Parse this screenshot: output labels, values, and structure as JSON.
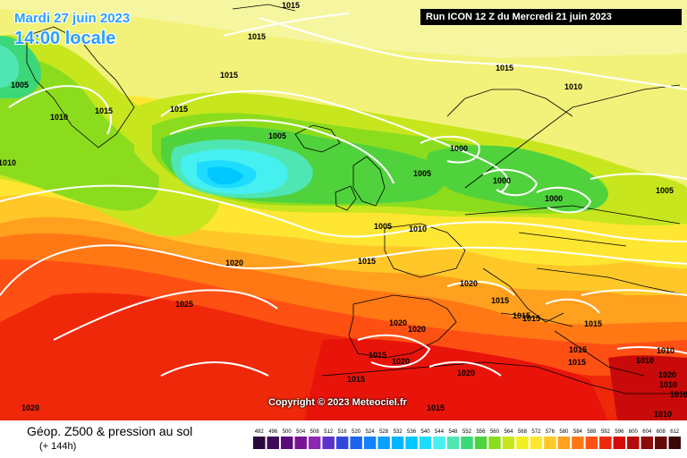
{
  "header": {
    "date": "Mardi 27 juin 2023",
    "time": "14:00 locale",
    "run": "Run ICON 12 Z du Mercredi 21 juin 2023"
  },
  "copyright": "Copyright © 2023 Meteociel.fr",
  "footer": {
    "title": "Géop. Z500 & pression au sol",
    "subtitle": "(+ 144h)"
  },
  "scale": {
    "values": [
      "492",
      "496",
      "500",
      "504",
      "508",
      "512",
      "516",
      "520",
      "524",
      "528",
      "532",
      "536",
      "540",
      "544",
      "548",
      "552",
      "556",
      "560",
      "564",
      "568",
      "572",
      "576",
      "580",
      "584",
      "588",
      "592",
      "596",
      "600",
      "604",
      "608",
      "612"
    ],
    "colors": [
      "#2b0a3d",
      "#3d0a5a",
      "#5a0a7a",
      "#7a1496",
      "#8c28b4",
      "#5a32c8",
      "#3246dc",
      "#1e64f0",
      "#1482ff",
      "#0aa0ff",
      "#00b4ff",
      "#00c8ff",
      "#1edcff",
      "#46f0f0",
      "#50e6b4",
      "#3cd778",
      "#50d23c",
      "#8cdc1e",
      "#c8e61e",
      "#f0f01e",
      "#ffe632",
      "#ffc828",
      "#ffa01e",
      "#ff7814",
      "#ff5014",
      "#f0280a",
      "#d70a0a",
      "#b40a0a",
      "#8c0a0a",
      "#640a0a",
      "#3c0505"
    ]
  },
  "isobars": [
    {
      "text": "1015"
    },
    {
      "text": "1015"
    },
    {
      "text": "1015"
    },
    {
      "text": "1015"
    },
    {
      "text": "1005"
    },
    {
      "text": "1010"
    },
    {
      "text": "1015"
    },
    {
      "text": "1010"
    },
    {
      "text": "1005"
    },
    {
      "text": "1010"
    },
    {
      "text": "1000"
    },
    {
      "text": "1000"
    },
    {
      "text": "1000"
    },
    {
      "text": "1005"
    },
    {
      "text": "1005"
    },
    {
      "text": "1010"
    },
    {
      "text": "1015"
    },
    {
      "text": "1020"
    },
    {
      "text": "1025"
    },
    {
      "text": "1020"
    },
    {
      "text": "1015"
    },
    {
      "text": "1005"
    },
    {
      "text": "1020"
    },
    {
      "text": "1015"
    },
    {
      "text": "1015"
    },
    {
      "text": "1015"
    },
    {
      "text": "1020"
    },
    {
      "text": "1020"
    },
    {
      "text": "1015"
    },
    {
      "text": "1020"
    },
    {
      "text": "1020"
    },
    {
      "text": "1015"
    },
    {
      "text": "1015"
    },
    {
      "text": "1015"
    },
    {
      "text": "1015"
    },
    {
      "text": "1010"
    },
    {
      "text": "1010"
    },
    {
      "text": "1010"
    },
    {
      "text": "1010"
    },
    {
      "text": "1010"
    },
    {
      "text": "1015"
    },
    {
      "text": "1020"
    }
  ]
}
